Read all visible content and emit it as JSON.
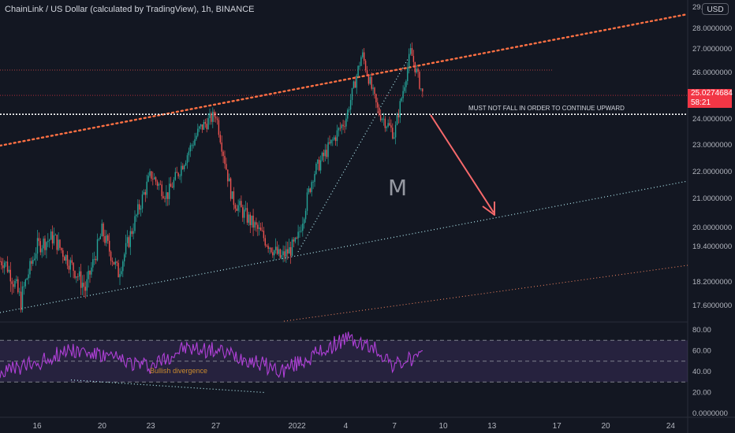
{
  "header": {
    "title": "ChainLink / US Dollar (calculated by TradingView), 1h, BINANCE",
    "currency": "USD"
  },
  "price_tag": {
    "price": "25.0274684",
    "countdown": "58:21"
  },
  "annotations": {
    "support_note": "MUST NOT FALL IN ORDER TO CONTINUE UPWARD",
    "pattern_label": "M",
    "divergence_label": "Bullish divergence"
  },
  "colors": {
    "background": "#131722",
    "up_candle": "#26a69a",
    "down_candle": "#ef5350",
    "resistance_line": "#ff7043",
    "support_line": "#b2ebf2",
    "channel_line": "#ff8a65",
    "arrow": "#f7696b",
    "rsi_line": "#b040d8",
    "rsi_band": "#7e57c2",
    "white_level": "#ffffff"
  },
  "chart_data": [
    {
      "type": "candlestick",
      "title": "ChainLink / US Dollar (calculated by TradingView), 1h, BINANCE",
      "x_ticks": [
        "16",
        "20",
        "23",
        "27",
        "2022",
        "4",
        "7",
        "10",
        "13",
        "17",
        "20",
        "24"
      ],
      "y_ticks": [
        "29.",
        "28.0000000",
        "27.0000000",
        "26.0000000",
        "24.0000000",
        "23.0000000",
        "22.0000000",
        "21.0000000",
        "20.0000000",
        "19.4000000",
        "18.2000000",
        "17.6000000"
      ],
      "ylim": [
        17.0,
        29.0
      ],
      "path_keypoints": [
        {
          "x": "14 Dec",
          "y": 18.9
        },
        {
          "x": "15 Dec",
          "y": 17.7
        },
        {
          "x": "16 Dec",
          "y": 19.4
        },
        {
          "x": "17 Dec",
          "y": 19.7
        },
        {
          "x": "19 Dec",
          "y": 18.0
        },
        {
          "x": "20 Dec",
          "y": 19.9
        },
        {
          "x": "21 Dec",
          "y": 18.5
        },
        {
          "x": "23 Dec",
          "y": 21.9
        },
        {
          "x": "24 Dec",
          "y": 21.1
        },
        {
          "x": "26 Dec",
          "y": 23.6
        },
        {
          "x": "27 Dec",
          "y": 24.2
        },
        {
          "x": "28 Dec",
          "y": 21.0
        },
        {
          "x": "29 Dec",
          "y": 20.3
        },
        {
          "x": "31 Dec",
          "y": 19.0
        },
        {
          "x": "01 Jan",
          "y": 19.5
        },
        {
          "x": "02 Jan",
          "y": 21.9
        },
        {
          "x": "04 Jan",
          "y": 24.0
        },
        {
          "x": "05 Jan",
          "y": 26.8
        },
        {
          "x": "06 Jan",
          "y": 24.3
        },
        {
          "x": "07 Jan",
          "y": 23.4
        },
        {
          "x": "08 Jan",
          "y": 26.9
        },
        {
          "x": "08 Jan 18:00",
          "y": 25.03
        }
      ],
      "levels": [
        {
          "value": 26.1
        },
        {
          "value": 25.03
        },
        {
          "value": 24.2
        }
      ],
      "annotation": "MUST NOT FALL IN ORDER TO CONTINUE UPWARD",
      "pattern": "M"
    },
    {
      "type": "line",
      "title": "RSI",
      "y_ticks": [
        "80.00",
        "60.00",
        "40.00",
        "20.00",
        "0.0000000"
      ],
      "ylim": [
        0,
        80
      ],
      "bands": {
        "upper": 70,
        "middle": 50,
        "lower": 30
      },
      "x": [
        "14 Dec",
        "16 Dec",
        "18 Dec",
        "20 Dec",
        "23 Dec",
        "25 Dec",
        "27 Dec",
        "29 Dec",
        "31 Dec",
        "02 Jan",
        "04 Jan",
        "06 Jan",
        "07 Jan",
        "08 Jan"
      ],
      "values": [
        40,
        48,
        62,
        55,
        45,
        62,
        60,
        52,
        40,
        55,
        72,
        60,
        45,
        52
      ],
      "annotation": "Bullish divergence"
    }
  ]
}
